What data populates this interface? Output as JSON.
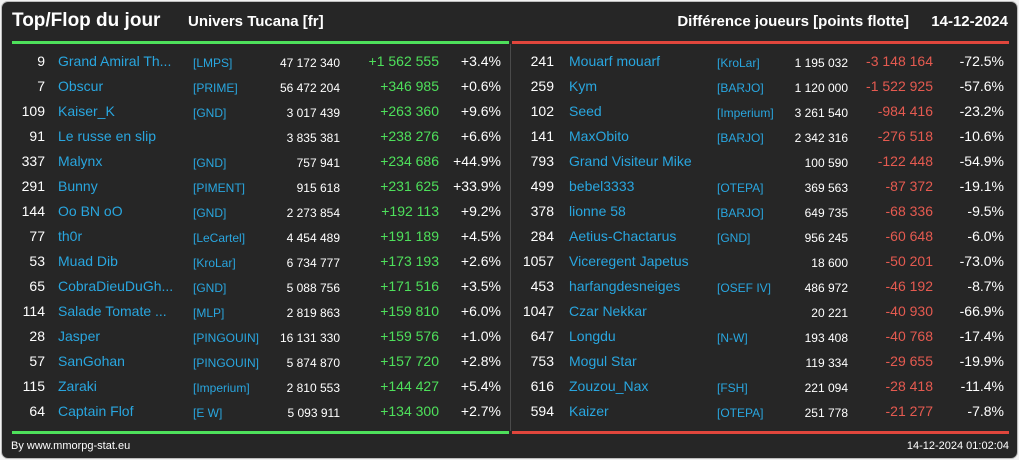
{
  "header": {
    "title": "Top/Flop du jour",
    "universe": "Univers Tucana [fr]",
    "diff_label": "Différence joueurs [points flotte]",
    "date": "14-12-2024"
  },
  "colors": {
    "top": "#4ee05b",
    "flop": "#e0463c",
    "name": "#29a6df",
    "background": "#262626"
  },
  "top": [
    {
      "rank": "9",
      "name": "Grand Amiral Th...",
      "alliance": "[LMPS]",
      "points": "47 172 340",
      "diff": "+1 562 555",
      "pct": "+3.4%"
    },
    {
      "rank": "7",
      "name": "Obscur",
      "alliance": "[PRIME]",
      "points": "56 472 204",
      "diff": "+346 985",
      "pct": "+0.6%"
    },
    {
      "rank": "109",
      "name": "Kaiser_K",
      "alliance": "[GND]",
      "points": "3 017 439",
      "diff": "+263 360",
      "pct": "+9.6%"
    },
    {
      "rank": "91",
      "name": "Le russe en slip",
      "alliance": "",
      "points": "3 835 381",
      "diff": "+238 276",
      "pct": "+6.6%"
    },
    {
      "rank": "337",
      "name": "Malynx",
      "alliance": "[GND]",
      "points": "757 941",
      "diff": "+234 686",
      "pct": "+44.9%"
    },
    {
      "rank": "291",
      "name": "Bunny",
      "alliance": "[PIMENT]",
      "points": "915 618",
      "diff": "+231 625",
      "pct": "+33.9%"
    },
    {
      "rank": "144",
      "name": "Oo BN oO",
      "alliance": "[GND]",
      "points": "2 273 854",
      "diff": "+192 113",
      "pct": "+9.2%"
    },
    {
      "rank": "77",
      "name": "th0r",
      "alliance": "[LeCartel]",
      "points": "4 454 489",
      "diff": "+191 189",
      "pct": "+4.5%"
    },
    {
      "rank": "53",
      "name": "Muad Dib",
      "alliance": "[KroLar]",
      "points": "6 734 777",
      "diff": "+173 193",
      "pct": "+2.6%"
    },
    {
      "rank": "65",
      "name": "CobraDieuDuGh...",
      "alliance": "[GND]",
      "points": "5 088 756",
      "diff": "+171 516",
      "pct": "+3.5%"
    },
    {
      "rank": "114",
      "name": "Salade Tomate ...",
      "alliance": "[MLP]",
      "points": "2 819 863",
      "diff": "+159 810",
      "pct": "+6.0%"
    },
    {
      "rank": "28",
      "name": "Jasper",
      "alliance": "[PINGOUIN]",
      "points": "16 131 330",
      "diff": "+159 576",
      "pct": "+1.0%"
    },
    {
      "rank": "57",
      "name": "SanGohan",
      "alliance": "[PINGOUIN]",
      "points": "5 874 870",
      "diff": "+157 720",
      "pct": "+2.8%"
    },
    {
      "rank": "115",
      "name": "Zaraki",
      "alliance": "[Imperium]",
      "points": "2 810 553",
      "diff": "+144 427",
      "pct": "+5.4%"
    },
    {
      "rank": "64",
      "name": "Captain Flof",
      "alliance": "[E W]",
      "points": "5 093 911",
      "diff": "+134 300",
      "pct": "+2.7%"
    }
  ],
  "flop": [
    {
      "rank": "241",
      "name": "Mouarf mouarf",
      "alliance": "[KroLar]",
      "points": "1 195 032",
      "diff": "-3 148 164",
      "pct": "-72.5%"
    },
    {
      "rank": "259",
      "name": "Kym",
      "alliance": "[BARJO]",
      "points": "1 120 000",
      "diff": "-1 522 925",
      "pct": "-57.6%"
    },
    {
      "rank": "102",
      "name": "Seed",
      "alliance": "[Imperium]",
      "points": "3 261 540",
      "diff": "-984 416",
      "pct": "-23.2%"
    },
    {
      "rank": "141",
      "name": "MaxObito",
      "alliance": "[BARJO]",
      "points": "2 342 316",
      "diff": "-276 518",
      "pct": "-10.6%"
    },
    {
      "rank": "793",
      "name": "Grand Visiteur Mike",
      "alliance": "",
      "points": "100 590",
      "diff": "-122 448",
      "pct": "-54.9%"
    },
    {
      "rank": "499",
      "name": "bebel3333",
      "alliance": "[OTEPA]",
      "points": "369 563",
      "diff": "-87 372",
      "pct": "-19.1%"
    },
    {
      "rank": "378",
      "name": "lionne 58",
      "alliance": "[BARJO]",
      "points": "649 735",
      "diff": "-68 336",
      "pct": "-9.5%"
    },
    {
      "rank": "284",
      "name": "Aetius-Chactarus",
      "alliance": "[GND]",
      "points": "956 245",
      "diff": "-60 648",
      "pct": "-6.0%"
    },
    {
      "rank": "1057",
      "name": "Viceregent Japetus",
      "alliance": "",
      "points": "18 600",
      "diff": "-50 201",
      "pct": "-73.0%"
    },
    {
      "rank": "453",
      "name": "harfangdesneiges",
      "alliance": "[OSEF IV]",
      "points": "486 972",
      "diff": "-46 192",
      "pct": "-8.7%"
    },
    {
      "rank": "1047",
      "name": "Czar Nekkar",
      "alliance": "",
      "points": "20 221",
      "diff": "-40 930",
      "pct": "-66.9%"
    },
    {
      "rank": "647",
      "name": "Longdu",
      "alliance": "[N-W]",
      "points": "193 408",
      "diff": "-40 768",
      "pct": "-17.4%"
    },
    {
      "rank": "753",
      "name": "Mogul Star",
      "alliance": "",
      "points": "119 334",
      "diff": "-29 655",
      "pct": "-19.9%"
    },
    {
      "rank": "616",
      "name": "Zouzou_Nax",
      "alliance": "[FSH]",
      "points": "221 094",
      "diff": "-28 418",
      "pct": "-11.4%"
    },
    {
      "rank": "594",
      "name": "Kaizer",
      "alliance": "[OTEPA]",
      "points": "251 778",
      "diff": "-21 277",
      "pct": "-7.8%"
    }
  ],
  "footer": {
    "source": "By www.mmorpg-stat.eu",
    "timestamp": "14-12-2024 01:02:04"
  }
}
